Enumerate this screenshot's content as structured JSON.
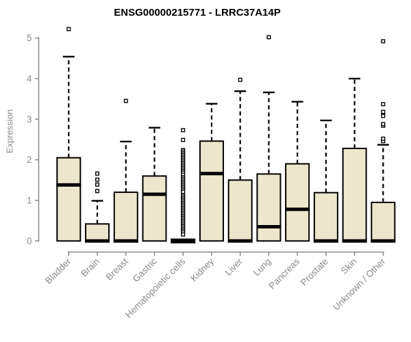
{
  "chart_data": {
    "type": "boxplot",
    "title": "ENSG00000215771 - LRRC37A14P",
    "xlabel": "",
    "ylabel": "Expression",
    "ylim": [
      0,
      5
    ],
    "yticks": [
      0,
      1,
      2,
      3,
      4,
      5
    ],
    "grid": false,
    "whisker_linestyle": "dashed",
    "outlier_marker": "open-square",
    "categories": [
      "Bladder",
      "Brain",
      "Breast",
      "Gastric",
      "Hematopoietic cells",
      "Kidney",
      "Liver",
      "Lung",
      "Pancreas",
      "Prostate",
      "Skin",
      "Unknown / Other"
    ],
    "boxes": [
      {
        "category": "Bladder",
        "q1": 0,
        "median": 1.38,
        "q3": 2.05,
        "whisker_low": 0,
        "whisker_high": 4.54,
        "outliers": [
          5.22
        ]
      },
      {
        "category": "Brain",
        "q1": 0,
        "median": 0,
        "q3": 0.42,
        "whisker_low": 0,
        "whisker_high": 0.99,
        "outliers": [
          1.23,
          1.39,
          1.51,
          1.66
        ]
      },
      {
        "category": "Breast",
        "q1": 0,
        "median": 0,
        "q3": 1.2,
        "whisker_low": 0,
        "whisker_high": 2.45,
        "outliers": [
          3.45
        ]
      },
      {
        "category": "Gastric",
        "q1": 0,
        "median": 1.15,
        "q3": 1.6,
        "whisker_low": 0,
        "whisker_high": 2.79,
        "outliers": []
      },
      {
        "category": "Hematopoietic cells",
        "q1": 0,
        "median": 0,
        "q3": 0,
        "whisker_low": 0,
        "whisker_high": 0,
        "outliers": [
          2.73,
          2.49,
          2.24,
          2.2,
          2.16,
          2.12,
          2.08,
          2.04,
          2.0,
          1.96,
          1.92,
          1.88,
          1.84,
          1.8,
          1.76,
          1.72,
          1.68,
          1.63,
          1.57,
          1.53,
          1.49,
          1.45,
          1.41,
          1.37,
          1.33,
          1.29,
          1.25,
          1.21,
          1.13,
          1.09,
          1.05,
          1.01,
          0.97,
          0.93,
          0.89,
          0.85,
          0.81,
          0.77,
          0.73,
          0.69,
          0.65,
          0.61,
          0.57,
          0.53,
          0.49,
          0.45,
          0.41,
          0.37,
          0.33,
          0.29,
          0.25,
          0.21,
          0.16
        ]
      },
      {
        "category": "Kidney",
        "q1": 0,
        "median": 1.66,
        "q3": 2.46,
        "whisker_low": 0,
        "whisker_high": 3.38,
        "outliers": []
      },
      {
        "category": "Liver",
        "q1": 0,
        "median": 0,
        "q3": 1.5,
        "whisker_low": 0,
        "whisker_high": 3.69,
        "outliers": [
          3.97
        ]
      },
      {
        "category": "Lung",
        "q1": 0,
        "median": 0.35,
        "q3": 1.65,
        "whisker_low": 0,
        "whisker_high": 3.66,
        "outliers": [
          5.02
        ]
      },
      {
        "category": "Pancreas",
        "q1": 0,
        "median": 0.78,
        "q3": 1.9,
        "whisker_low": 0,
        "whisker_high": 3.43,
        "outliers": []
      },
      {
        "category": "Prostate",
        "q1": 0,
        "median": 0,
        "q3": 1.19,
        "whisker_low": 0,
        "whisker_high": 2.97,
        "outliers": []
      },
      {
        "category": "Skin",
        "q1": 0,
        "median": 0,
        "q3": 2.28,
        "whisker_low": 0,
        "whisker_high": 4.0,
        "outliers": []
      },
      {
        "category": "Unknown / Other",
        "q1": 0,
        "median": 0,
        "q3": 0.95,
        "whisker_low": 0,
        "whisker_high": 2.37,
        "outliers": [
          2.46,
          2.52,
          2.84,
          2.88,
          3.08,
          3.18,
          3.37,
          4.92
        ]
      }
    ],
    "colors": {
      "box_fill": "#ECE7CC",
      "box_border": "#000000",
      "median": "#000000",
      "axis": "#8A8A8A",
      "tick_text": "#8A8A8A",
      "title_text": "#000000",
      "background": "#FFFFFF"
    }
  }
}
